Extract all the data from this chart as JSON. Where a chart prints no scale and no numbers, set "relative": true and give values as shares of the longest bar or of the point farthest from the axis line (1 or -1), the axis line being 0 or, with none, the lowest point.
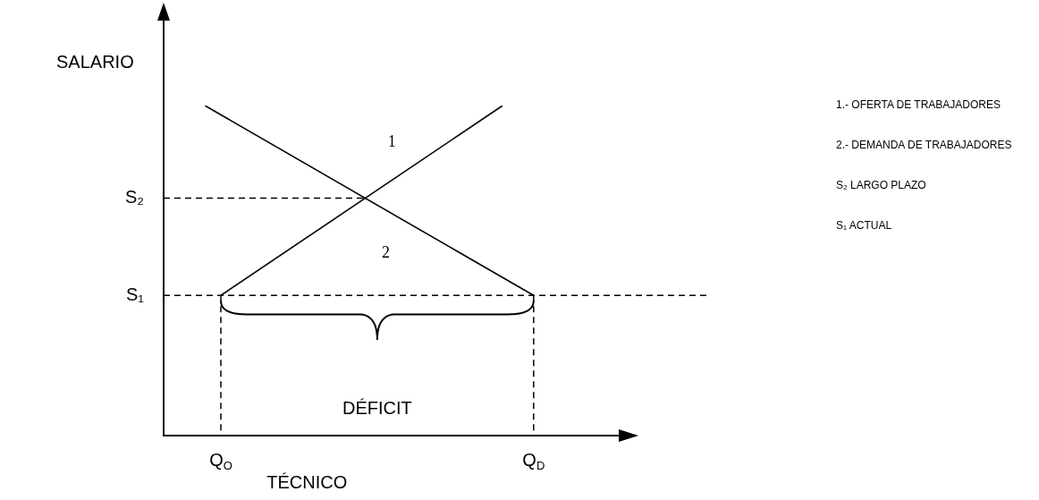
{
  "chart_data": {
    "type": "line",
    "relative": true,
    "xlabel": "TÉCNICO",
    "ylabel": "SALARIO",
    "categories": [
      null,
      "Q$_{O}$",
      null,
      null,
      null,
      null,
      null,
      null,
      null,
      null,
      null,
      null,
      null,
      null,
      null,
      null,
      null,
      null,
      null,
      null,
      null,
      "Q$_{D}$"
    ],
    "series": [
      {
        "name": "1",
        "color": "#000000",
        "values": [
          null,
          0.425,
          null,
          null,
          null,
          null,
          null,
          null,
          null,
          null,
          null,
          null,
          null,
          null,
          null,
          null,
          null,
          null,
          null,
          1,
          null,
          null
        ]
      },
      {
        "name": "2",
        "color": "#000000",
        "values": [
          1,
          null,
          null,
          null,
          null,
          null,
          null,
          null,
          null,
          null,
          null,
          null,
          null,
          null,
          null,
          null,
          null,
          null,
          null,
          null,
          null,
          0.425
        ]
      }
    ],
    "ref_lines": [
      {
        "axis": "y",
        "value": 0.425,
        "label": "S₁",
        "line_style": "dashed"
      },
      {
        "axis": "y",
        "value": 0.72,
        "label": "S₂",
        "line_style": "dashed"
      },
      {
        "axis": "x",
        "value": "Q$_{O}$",
        "line_style": "dashed"
      },
      {
        "axis": "x",
        "value": "Q$_{D}$",
        "line_style": "dashed"
      }
    ],
    "annotations": [
      "DÉFICIT",
      "1.- OFERTA DE TRABAJADORES",
      "2.- DEMANDA DE TRABAJADORES",
      "S₂ LARGO PLAZO",
      "S₁ ACTUAL"
    ],
    "marker": "none",
    "line_style": "solid",
    "legend": false,
    "grid": false
  }
}
